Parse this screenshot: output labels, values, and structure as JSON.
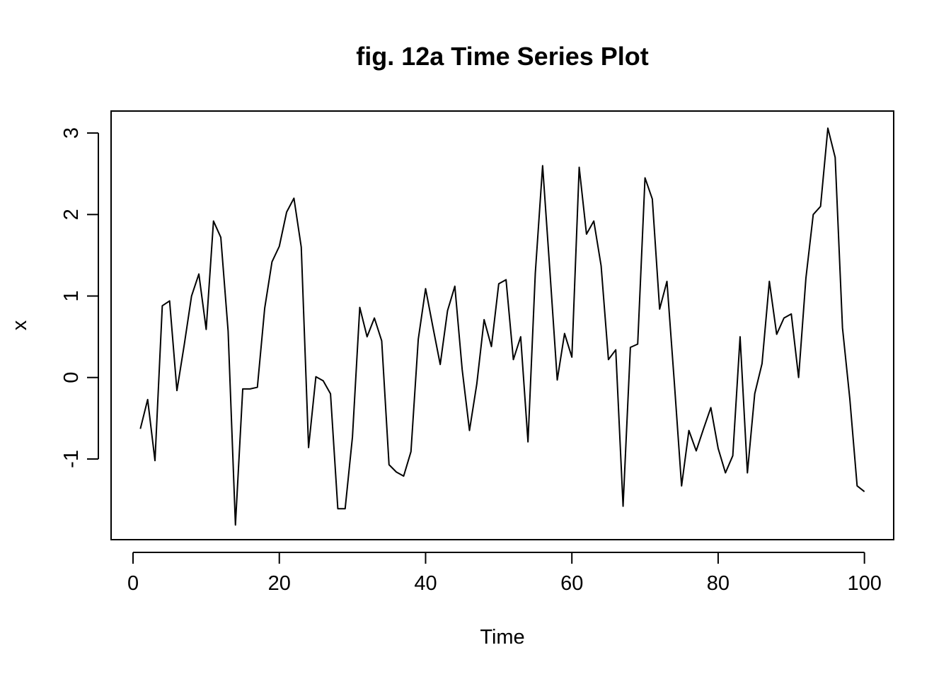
{
  "chart_data": {
    "type": "line",
    "title": "fig. 12a Time Series Plot",
    "xlabel": "Time",
    "ylabel": "x",
    "xlim": [
      -3,
      104
    ],
    "ylim": [
      -1.99,
      3.27
    ],
    "xticks": [
      0,
      20,
      40,
      60,
      80,
      100
    ],
    "xtick_labels": [
      "0",
      "20",
      "40",
      "60",
      "80",
      "100"
    ],
    "yticks": [
      -1,
      0,
      1,
      2,
      3
    ],
    "ytick_labels": [
      "-1",
      "0",
      "1",
      "2",
      "3"
    ],
    "grid": false,
    "line_color": "#000000",
    "series": [
      {
        "x": [
          1,
          2,
          3,
          4,
          5,
          6,
          7,
          8,
          9,
          10,
          11,
          12,
          13,
          14,
          15,
          16,
          17,
          18,
          19,
          20,
          21,
          22,
          23,
          24,
          25,
          26,
          27,
          28,
          29,
          30,
          31,
          32,
          33,
          34,
          35,
          36,
          37,
          38,
          39,
          40,
          41,
          42,
          43,
          44,
          45,
          46,
          47,
          48,
          49,
          50,
          51,
          52,
          53,
          54,
          55,
          56,
          57,
          58,
          59,
          60,
          61,
          62,
          63,
          64,
          65,
          66,
          67,
          68,
          69,
          70,
          71,
          72,
          73,
          74,
          75,
          76,
          77,
          78,
          79,
          80,
          81,
          82,
          83,
          84,
          85,
          86,
          87,
          88,
          89,
          90,
          91,
          92,
          93,
          94,
          95,
          96,
          97,
          98,
          99,
          100
        ],
        "values": [
          -0.63,
          -0.27,
          -1.02,
          0.88,
          0.94,
          -0.16,
          0.4,
          1.0,
          1.27,
          0.59,
          1.92,
          1.72,
          0.57,
          -1.81,
          -0.14,
          -0.14,
          -0.12,
          0.85,
          1.42,
          1.61,
          2.03,
          2.2,
          1.6,
          -0.86,
          0.01,
          -0.04,
          -0.2,
          -1.61,
          -1.61,
          -0.73,
          0.86,
          0.5,
          0.73,
          0.45,
          -1.07,
          -1.16,
          -1.21,
          -0.91,
          0.47,
          1.09,
          0.62,
          0.16,
          0.82,
          1.12,
          0.1,
          -0.65,
          -0.08,
          0.71,
          0.38,
          1.15,
          1.2,
          0.22,
          0.5,
          -0.79,
          1.28,
          2.6,
          1.3,
          -0.03,
          0.54,
          0.25,
          2.58,
          1.76,
          1.92,
          1.37,
          0.22,
          0.34,
          -1.58,
          0.37,
          0.41,
          2.45,
          2.19,
          0.84,
          1.18,
          -0.05,
          -1.33,
          -0.65,
          -0.9,
          -0.63,
          -0.37,
          -0.87,
          -1.17,
          -0.96,
          0.5,
          -1.17,
          -0.2,
          0.17,
          1.18,
          0.53,
          0.73,
          0.78,
          0.0,
          1.22,
          2.0,
          2.1,
          3.06,
          2.7,
          0.61,
          -0.26,
          -1.33,
          -1.4
        ]
      }
    ]
  }
}
